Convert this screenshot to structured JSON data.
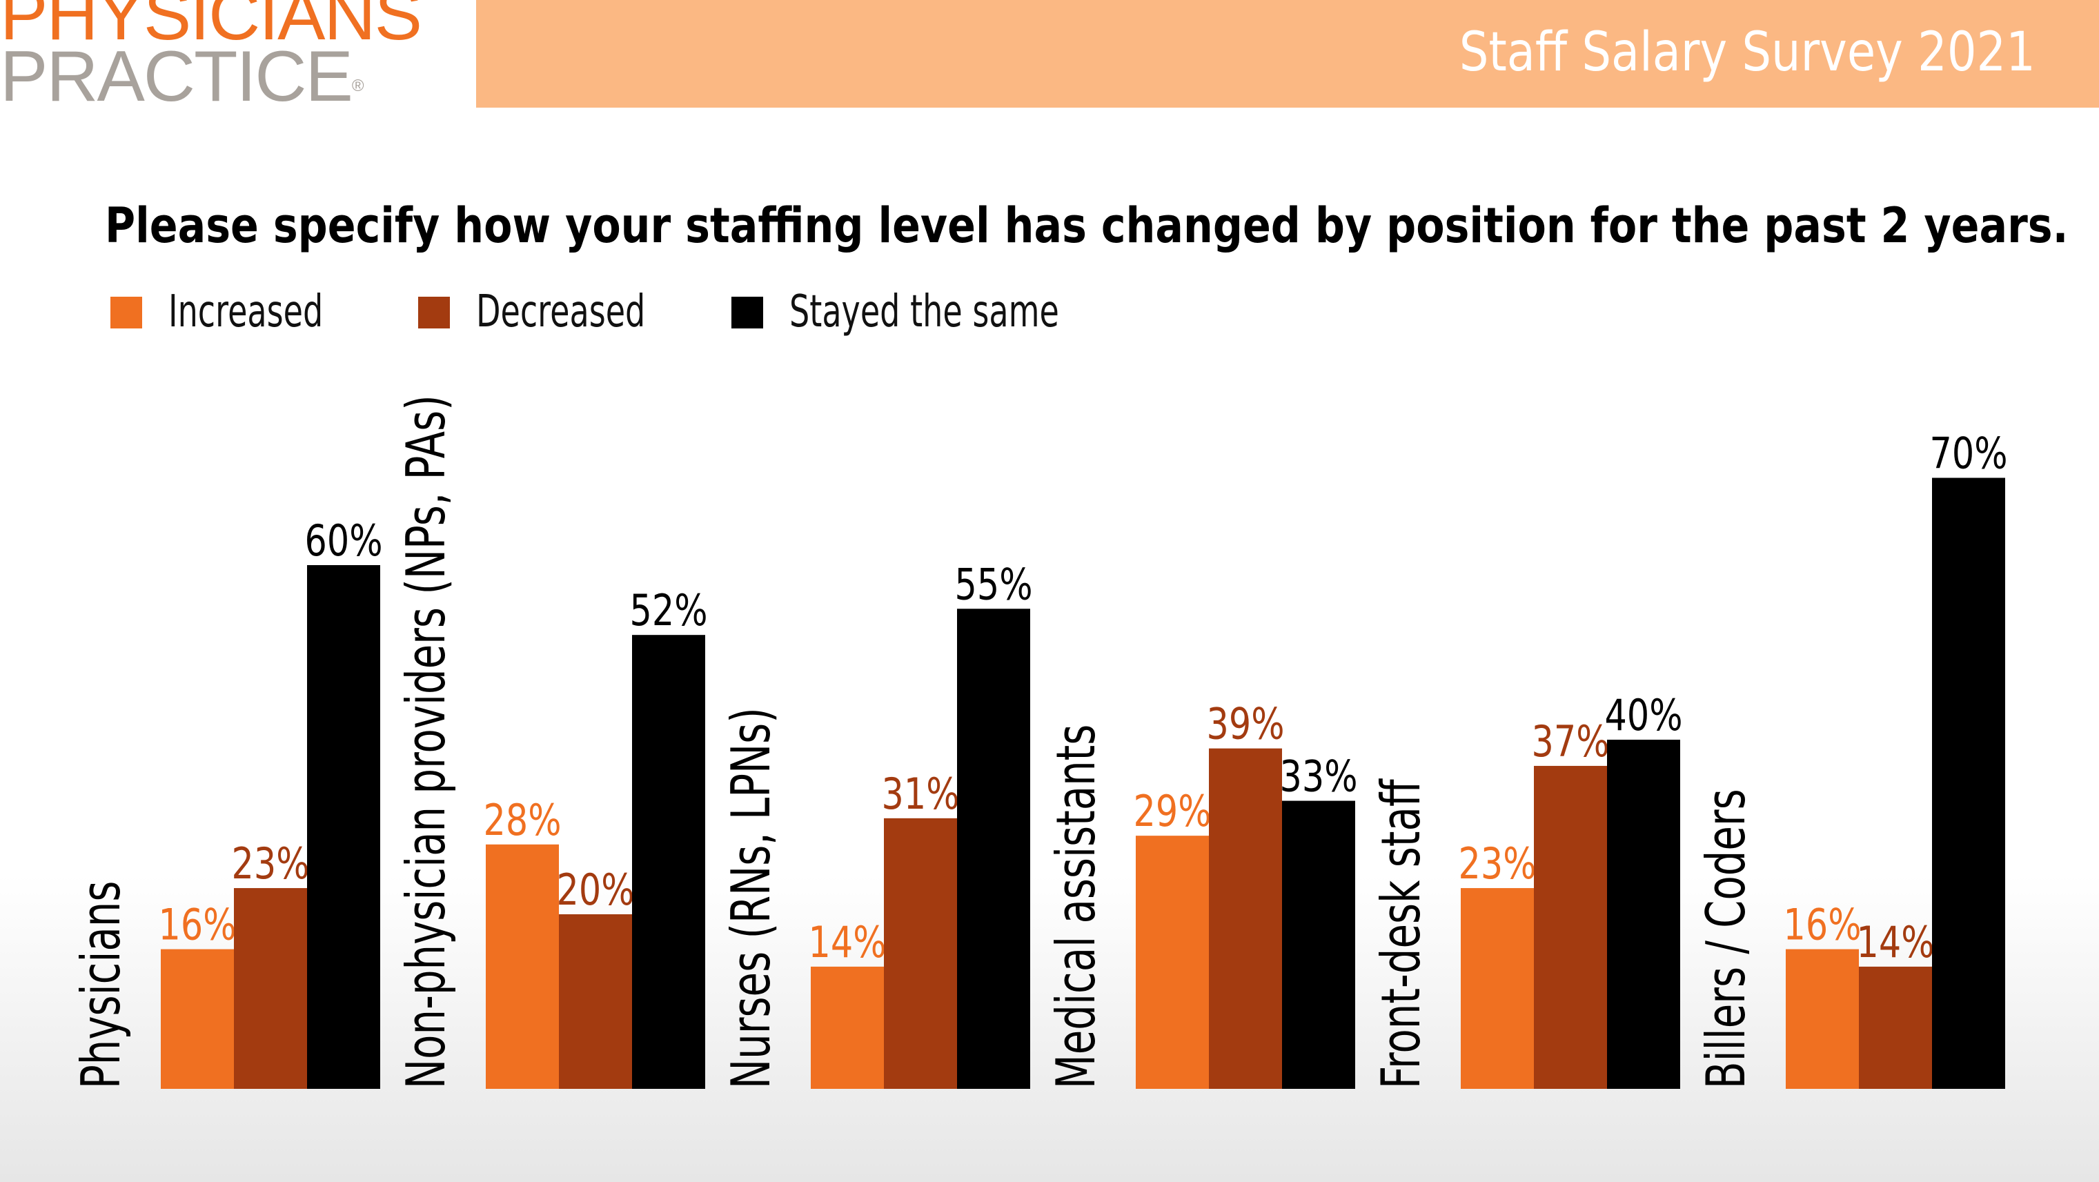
{
  "brand": {
    "line1": "PHYSICIANS",
    "line2": "PRACTICE",
    "reg": "®",
    "primary_color": "#F07021",
    "secondary_color": "#A8A29C"
  },
  "banner": {
    "title": "Staff Salary Survey 2021",
    "color": "#FBB883"
  },
  "chart_data": {
    "type": "bar",
    "title": "Please specify how your staffing level has changed by position for the past 2 years.",
    "categories": [
      "Physicians",
      "Non-physician providers (NPs, PAs)",
      "Nurses (RNs, LPNs)",
      "Medical assistants",
      "Front-desk staff",
      "Billers / Coders"
    ],
    "series": [
      {
        "name": "Increased",
        "color": "#F07021",
        "values": [
          16,
          28,
          14,
          29,
          23,
          16
        ]
      },
      {
        "name": "Decreased",
        "color": "#A33B10",
        "values": [
          23,
          20,
          31,
          39,
          37,
          14
        ]
      },
      {
        "name": "Stayed the same",
        "color": "#000000",
        "values": [
          60,
          52,
          55,
          33,
          40,
          70
        ]
      }
    ],
    "label_colors": [
      "#F07021",
      "#A33B10",
      "#000000"
    ],
    "value_suffix": "%",
    "ylim": [
      0,
      70
    ],
    "grid": false,
    "legend_position": "top-left"
  }
}
